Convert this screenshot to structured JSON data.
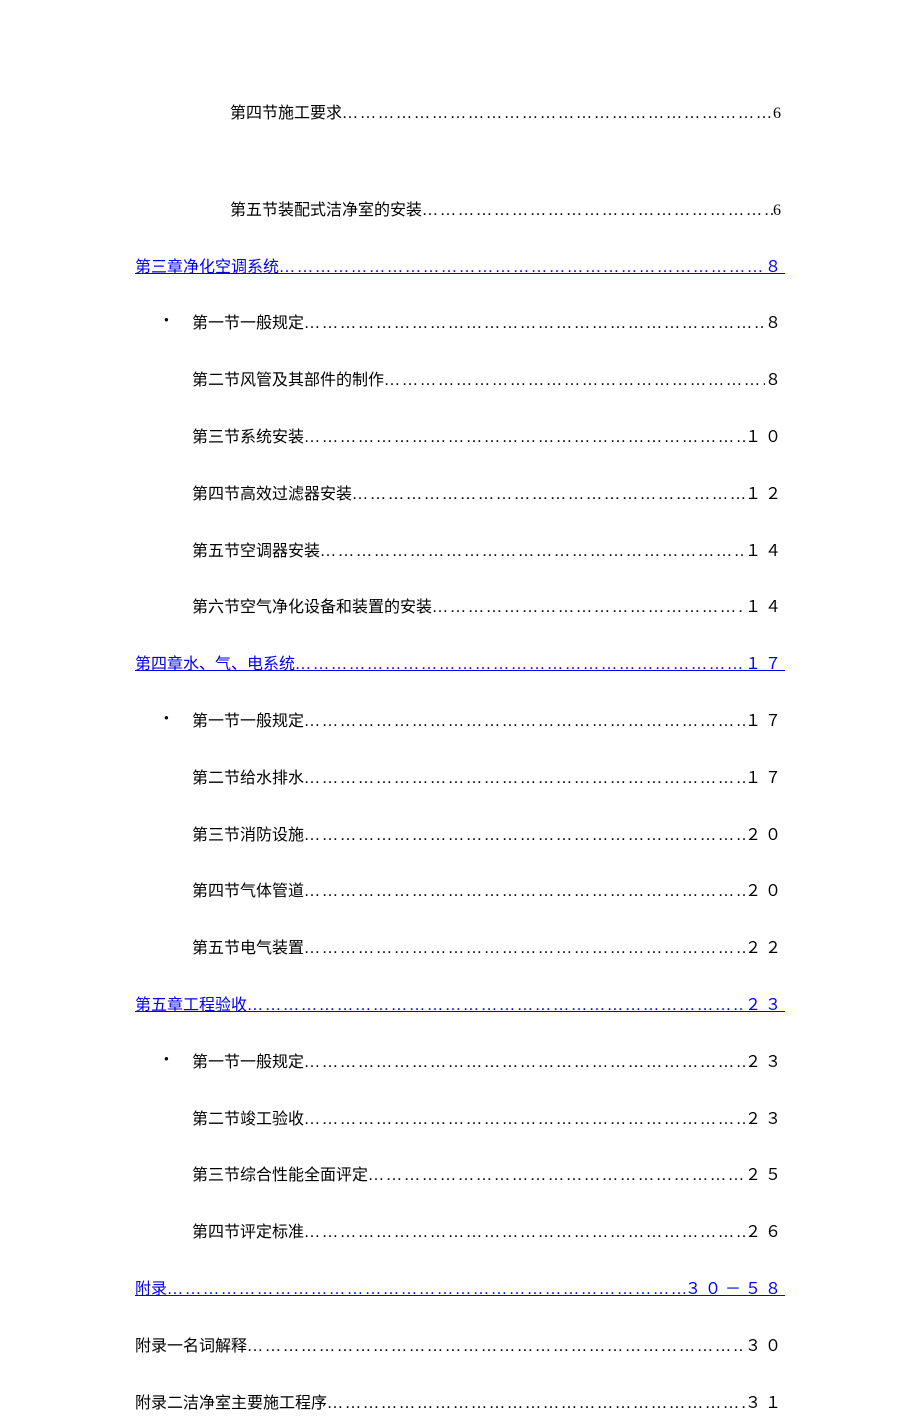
{
  "leader_dots": "………………………………………………………………………………………………………",
  "entries": [
    {
      "indent": 1,
      "title": "第四节施工要求",
      "page": "6",
      "link": false,
      "bullet": false,
      "spacer_after": true
    },
    {
      "indent": 1,
      "title": "第五节装配式洁净室的安装",
      "page": "6",
      "link": false,
      "bullet": false
    },
    {
      "indent": 0,
      "title": "第三章净化空调系统",
      "page": "８",
      "link": true,
      "bullet": false
    },
    {
      "indent": 2,
      "title": "第一节一般规定",
      "page": " ８",
      "link": false,
      "bullet": true
    },
    {
      "indent": 2,
      "title": "第二节风管及其部件的制作",
      "page": " ８",
      "link": false,
      "bullet": false
    },
    {
      "indent": 2,
      "title": "第三节系统安装",
      "page": "１０",
      "link": false,
      "bullet": false
    },
    {
      "indent": 2,
      "title": "第四节高效过滤器安装",
      "page": "１２",
      "link": false,
      "bullet": false
    },
    {
      "indent": 2,
      "title": "第五节空调器安装",
      "page": "１４",
      "link": false,
      "bullet": false
    },
    {
      "indent": 2,
      "title": "第六节空气净化设备和装置的安装",
      "page": "１４",
      "link": false,
      "bullet": false
    },
    {
      "indent": 0,
      "title": "第四章水、气、电系统",
      "page": " １７",
      "link": true,
      "bullet": false
    },
    {
      "indent": 2,
      "title": "第一节一般规定",
      "page": "１７",
      "link": false,
      "bullet": true
    },
    {
      "indent": 2,
      "title": "第二节给水排水",
      "page": "１７",
      "link": false,
      "bullet": false
    },
    {
      "indent": 2,
      "title": "第三节消防设施",
      "page": "２０",
      "link": false,
      "bullet": false
    },
    {
      "indent": 2,
      "title": "第四节气体管道",
      "page": "２０",
      "link": false,
      "bullet": false
    },
    {
      "indent": 2,
      "title": "第五节电气装置",
      "page": "２２",
      "link": false,
      "bullet": false
    },
    {
      "indent": 0,
      "title": "第五章工程验收",
      "page": "２３",
      "link": true,
      "bullet": false
    },
    {
      "indent": 2,
      "title": "第一节一般规定",
      "page": "２３",
      "link": false,
      "bullet": true
    },
    {
      "indent": 2,
      "title": "第二节竣工验收",
      "page": "２３",
      "link": false,
      "bullet": false
    },
    {
      "indent": 2,
      "title": "第三节综合性能全面评定",
      "page": "２５",
      "link": false,
      "bullet": false
    },
    {
      "indent": 2,
      "title": "第四节评定标准",
      "page": "２６",
      "link": false,
      "bullet": false
    },
    {
      "indent": 0,
      "title": "附录",
      "page": "３０－５８",
      "link": true,
      "bullet": false
    },
    {
      "indent": 0,
      "title": "附录一名词解释",
      "page": "３０",
      "link": false,
      "bullet": false
    },
    {
      "indent": 0,
      "title": "附录二洁净室主要施工程序",
      "page": "３１",
      "link": false,
      "bullet": false
    }
  ],
  "styles": {
    "font_size": 16,
    "line_spacing": 28,
    "text_color": "#000000",
    "link_color": "#0000ee",
    "background_color": "#ffffff"
  }
}
